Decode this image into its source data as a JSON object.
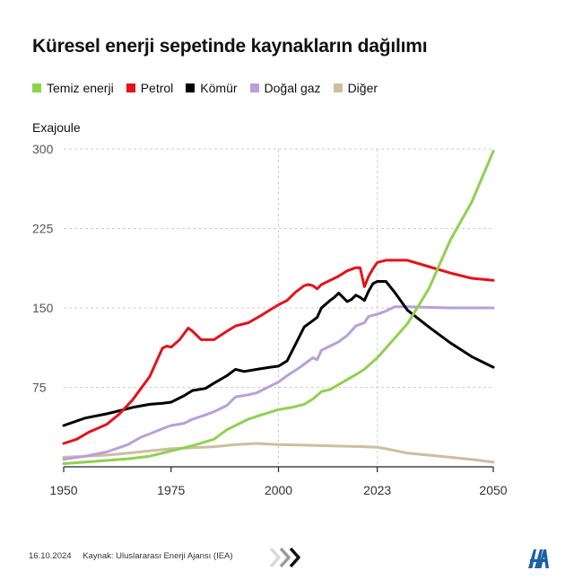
{
  "colors": {
    "clean": "#8fd14f",
    "oil": "#e3131b",
    "coal": "#000000",
    "gas": "#b9a0d9",
    "other": "#cbbf9e",
    "grid": "#cfcfcf",
    "axis": "#222222"
  },
  "chart_data": {
    "type": "line",
    "title": "Küresel enerji sepetinde kaynakların dağılımı",
    "ylabel": "Exajoule",
    "xlabel": "",
    "xlim": [
      1950,
      2050
    ],
    "ylim": [
      0,
      300
    ],
    "x_ticks": [
      1950,
      1975,
      2000,
      2023,
      2050
    ],
    "y_ticks": [
      75,
      150,
      225,
      300
    ],
    "vertical_dashed_gridlines_at": [
      2000,
      2023
    ],
    "series": [
      {
        "key": "clean",
        "name": "Temiz enerji",
        "points": [
          [
            1950,
            3
          ],
          [
            1955,
            4.5
          ],
          [
            1960,
            6
          ],
          [
            1965,
            7.5
          ],
          [
            1970,
            10
          ],
          [
            1975,
            15
          ],
          [
            1980,
            20
          ],
          [
            1985,
            26
          ],
          [
            1988,
            35
          ],
          [
            1990,
            39
          ],
          [
            1993,
            45
          ],
          [
            1996,
            49
          ],
          [
            2000,
            54
          ],
          [
            2003,
            56
          ],
          [
            2006,
            59
          ],
          [
            2008,
            64
          ],
          [
            2010,
            71
          ],
          [
            2012,
            73
          ],
          [
            2015,
            80
          ],
          [
            2018,
            87
          ],
          [
            2020,
            92
          ],
          [
            2023,
            103
          ],
          [
            2025,
            112
          ],
          [
            2030,
            135
          ],
          [
            2035,
            168
          ],
          [
            2040,
            214
          ],
          [
            2045,
            250
          ],
          [
            2050,
            298
          ]
        ]
      },
      {
        "key": "oil",
        "name": "Petrol",
        "points": [
          [
            1950,
            22
          ],
          [
            1953,
            26
          ],
          [
            1956,
            33
          ],
          [
            1960,
            40
          ],
          [
            1963,
            50
          ],
          [
            1966,
            63
          ],
          [
            1970,
            85
          ],
          [
            1973,
            112
          ],
          [
            1974,
            114
          ],
          [
            1975,
            113
          ],
          [
            1977,
            120
          ],
          [
            1979,
            131
          ],
          [
            1980,
            128
          ],
          [
            1982,
            120
          ],
          [
            1985,
            120
          ],
          [
            1988,
            128
          ],
          [
            1990,
            133
          ],
          [
            1993,
            136
          ],
          [
            1996,
            143
          ],
          [
            1998,
            148
          ],
          [
            2000,
            153
          ],
          [
            2002,
            157
          ],
          [
            2004,
            165
          ],
          [
            2006,
            171
          ],
          [
            2007,
            172
          ],
          [
            2008,
            171
          ],
          [
            2009,
            168
          ],
          [
            2010,
            172
          ],
          [
            2012,
            176
          ],
          [
            2014,
            180
          ],
          [
            2016,
            185
          ],
          [
            2018,
            188
          ],
          [
            2019,
            188
          ],
          [
            2020,
            170
          ],
          [
            2021,
            180
          ],
          [
            2022,
            187
          ],
          [
            2023,
            193
          ],
          [
            2025,
            195
          ],
          [
            2030,
            195
          ],
          [
            2035,
            189
          ],
          [
            2040,
            183
          ],
          [
            2045,
            178
          ],
          [
            2050,
            176
          ]
        ]
      },
      {
        "key": "coal",
        "name": "Kömür",
        "points": [
          [
            1950,
            39
          ],
          [
            1955,
            46
          ],
          [
            1960,
            50
          ],
          [
            1963,
            53
          ],
          [
            1966,
            56
          ],
          [
            1970,
            59
          ],
          [
            1973,
            60
          ],
          [
            1975,
            61
          ],
          [
            1978,
            67
          ],
          [
            1980,
            72
          ],
          [
            1983,
            74
          ],
          [
            1985,
            79
          ],
          [
            1988,
            86
          ],
          [
            1990,
            92
          ],
          [
            1992,
            90
          ],
          [
            1995,
            92
          ],
          [
            1998,
            94
          ],
          [
            2000,
            95
          ],
          [
            2002,
            100
          ],
          [
            2004,
            116
          ],
          [
            2006,
            132
          ],
          [
            2008,
            138
          ],
          [
            2009,
            141
          ],
          [
            2010,
            150
          ],
          [
            2012,
            157
          ],
          [
            2013,
            160
          ],
          [
            2014,
            164
          ],
          [
            2015,
            160
          ],
          [
            2016,
            156
          ],
          [
            2017,
            158
          ],
          [
            2018,
            162
          ],
          [
            2019,
            160
          ],
          [
            2020,
            157
          ],
          [
            2021,
            166
          ],
          [
            2022,
            173
          ],
          [
            2023,
            175
          ],
          [
            2025,
            175
          ],
          [
            2027,
            165
          ],
          [
            2030,
            148
          ],
          [
            2035,
            132
          ],
          [
            2040,
            117
          ],
          [
            2045,
            104
          ],
          [
            2050,
            94
          ]
        ]
      },
      {
        "key": "gas",
        "name": "Doğal gaz",
        "points": [
          [
            1950,
            7
          ],
          [
            1955,
            10
          ],
          [
            1960,
            14
          ],
          [
            1965,
            21
          ],
          [
            1968,
            28
          ],
          [
            1970,
            31
          ],
          [
            1973,
            36
          ],
          [
            1975,
            39
          ],
          [
            1978,
            41
          ],
          [
            1980,
            45
          ],
          [
            1983,
            49
          ],
          [
            1985,
            52
          ],
          [
            1988,
            58
          ],
          [
            1990,
            66
          ],
          [
            1993,
            68
          ],
          [
            1995,
            70
          ],
          [
            1998,
            76
          ],
          [
            2000,
            80
          ],
          [
            2002,
            86
          ],
          [
            2005,
            94
          ],
          [
            2008,
            103
          ],
          [
            2009,
            101
          ],
          [
            2010,
            110
          ],
          [
            2012,
            114
          ],
          [
            2014,
            118
          ],
          [
            2016,
            124
          ],
          [
            2018,
            133
          ],
          [
            2020,
            136
          ],
          [
            2021,
            142
          ],
          [
            2023,
            144
          ],
          [
            2025,
            147
          ],
          [
            2027,
            151
          ],
          [
            2030,
            151
          ],
          [
            2040,
            150
          ],
          [
            2050,
            150
          ]
        ]
      },
      {
        "key": "other",
        "name": "Diğer",
        "points": [
          [
            1950,
            9
          ],
          [
            1955,
            10
          ],
          [
            1960,
            11
          ],
          [
            1965,
            13
          ],
          [
            1970,
            15
          ],
          [
            1975,
            17
          ],
          [
            1980,
            18
          ],
          [
            1985,
            19
          ],
          [
            1990,
            21
          ],
          [
            1995,
            22
          ],
          [
            2000,
            21
          ],
          [
            2005,
            20.5
          ],
          [
            2010,
            20
          ],
          [
            2015,
            19.5
          ],
          [
            2020,
            19
          ],
          [
            2023,
            18.5
          ],
          [
            2025,
            17
          ],
          [
            2030,
            13
          ],
          [
            2035,
            11
          ],
          [
            2040,
            9
          ],
          [
            2045,
            7
          ],
          [
            2050,
            4.5
          ]
        ]
      }
    ]
  },
  "footer": {
    "date": "16.10.2024",
    "source": "Kaynak: Uluslararası Enerji Ajansı (IEA)"
  }
}
